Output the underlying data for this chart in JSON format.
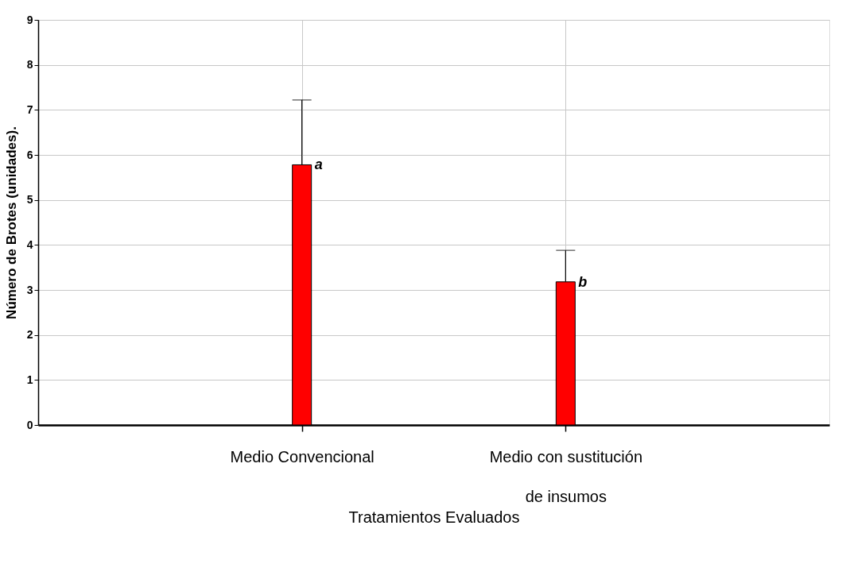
{
  "chart_data": {
    "type": "bar",
    "xlabel": "Tratamientos Evaluados",
    "ylabel": "Número de Brotes (unidades).",
    "categories": [
      "Medio Convencional",
      "Medio con sustitución\nde insumos"
    ],
    "values": [
      5.78,
      3.18
    ],
    "color": "#ff0000",
    "errors": [
      [
        5.78,
        7.22
      ],
      [
        3.18,
        3.88
      ]
    ],
    "ylim": [
      0,
      9
    ],
    "yticks": [
      0,
      1,
      2,
      3,
      4,
      5,
      6,
      7,
      8,
      9
    ],
    "grid": true,
    "annotations": [
      {
        "text": "a",
        "x": "Medio Convencional",
        "y": 5.78
      },
      {
        "text": "b",
        "x": "Medio con sustitución\nde insumos",
        "y": 3.18
      }
    ]
  }
}
